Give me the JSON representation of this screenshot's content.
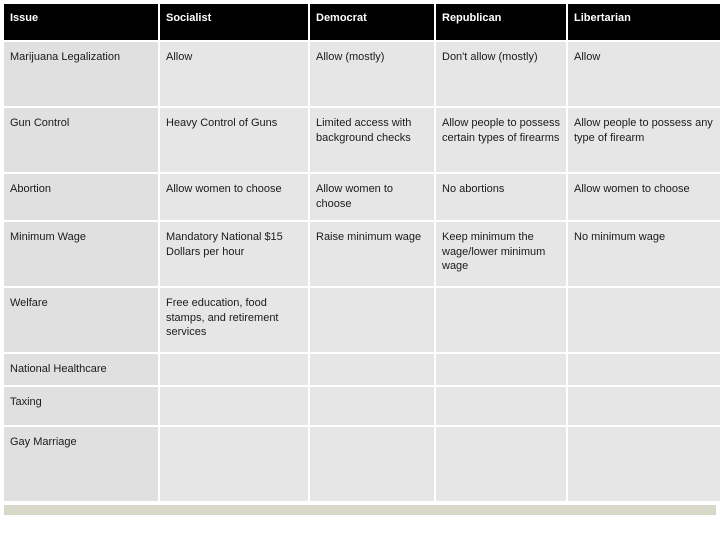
{
  "table": {
    "columns": [
      "Issue",
      "Socialist",
      "Democrat",
      "Republican",
      "Libertarian"
    ],
    "rows": [
      {
        "issue": "Marijuana Legalization",
        "socialist": "Allow",
        "democrat": "Allow (mostly)",
        "republican": "Don't allow (mostly)",
        "libertarian": "Allow"
      },
      {
        "issue": "Gun Control",
        "socialist": "Heavy Control of Guns",
        "democrat": "Limited access with background checks",
        "republican": "Allow people to possess certain types of firearms",
        "libertarian": "Allow people to possess any type of firearm"
      },
      {
        "issue": "Abortion",
        "socialist": "Allow women to choose",
        "democrat": "Allow women to choose",
        "republican": "No abortions",
        "libertarian": "Allow women to choose"
      },
      {
        "issue": "Minimum Wage",
        "socialist": "Mandatory National $15 Dollars per hour",
        "democrat": "Raise minimum wage",
        "republican": "Keep minimum the wage/lower minimum wage",
        "libertarian": "No minimum wage"
      },
      {
        "issue": "Welfare",
        "socialist": "Free education, food stamps, and retirement services",
        "democrat": "",
        "republican": "",
        "libertarian": ""
      },
      {
        "issue": "National Healthcare",
        "socialist": "",
        "democrat": "",
        "republican": "",
        "libertarian": ""
      },
      {
        "issue": "Taxing",
        "socialist": "",
        "democrat": "",
        "republican": "",
        "libertarian": ""
      },
      {
        "issue": "Gay Marriage",
        "socialist": "",
        "democrat": "",
        "republican": "",
        "libertarian": ""
      }
    ],
    "header_bg": "#000000",
    "header_fg": "#ffffff",
    "cell_bg": "#e6e6e6",
    "cell_fg": "#1a1a1a",
    "font_size_header": 11,
    "font_size_cell": 11,
    "footer_color": "#d8d8c8"
  }
}
